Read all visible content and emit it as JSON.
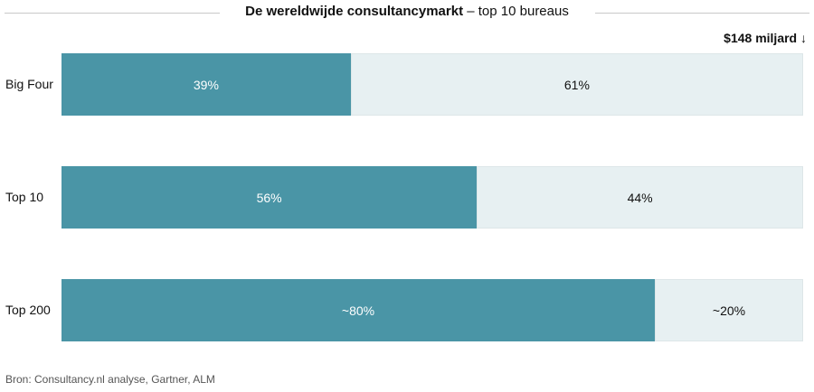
{
  "chart_data": {
    "type": "bar",
    "orientation": "horizontal-stacked-100",
    "title_bold": "De wereldwijde consultancymarkt",
    "title_rest": "–  top 10 bureaus",
    "total_label": "$148 miljard",
    "categories": [
      "Big Four",
      "Top 10",
      "Top 200"
    ],
    "series": [
      {
        "name": "share",
        "values": [
          39,
          56,
          80
        ],
        "labels": [
          "39%",
          "56%",
          "~80%"
        ],
        "color": "#4a95a6"
      },
      {
        "name": "rest",
        "values": [
          61,
          44,
          20
        ],
        "labels": [
          "61%",
          "44%",
          "~20%"
        ],
        "color": "#e7f0f2"
      }
    ],
    "xlim": [
      0,
      100
    ],
    "grid": false
  },
  "source": "Bron: Consultancy.nl analyse, Gartner, ALM"
}
